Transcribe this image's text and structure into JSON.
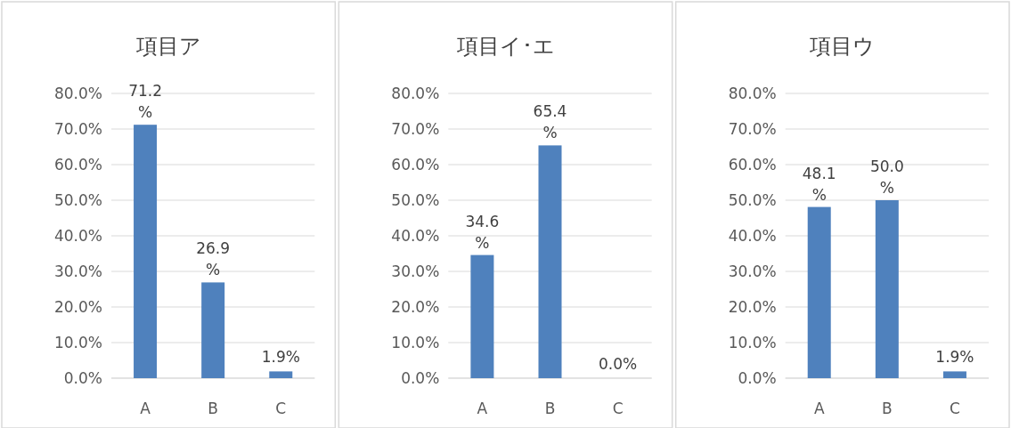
{
  "chart_data": [
    {
      "type": "bar",
      "title": "項目ア",
      "categories": [
        "A",
        "B",
        "C"
      ],
      "values": [
        71.2,
        26.9,
        1.9
      ],
      "value_labels": [
        "71.2%",
        "26.9%",
        "1.9%"
      ],
      "color": "#4f81bd",
      "ylim": [
        0,
        80
      ],
      "yticks": [
        {
          "value": 0,
          "label": "0.0%"
        },
        {
          "value": 10,
          "label": "10.0%"
        },
        {
          "value": 20,
          "label": "20.0%"
        },
        {
          "value": 30,
          "label": "30.0%"
        },
        {
          "value": 40,
          "label": "40.0%"
        },
        {
          "value": 50,
          "label": "50.0%"
        },
        {
          "value": 60,
          "label": "60.0%"
        },
        {
          "value": 70,
          "label": "70.0%"
        },
        {
          "value": 80,
          "label": "80.0%"
        }
      ],
      "grid": "y"
    },
    {
      "type": "bar",
      "title": "項目イ･エ",
      "categories": [
        "A",
        "B",
        "C"
      ],
      "values": [
        34.6,
        65.4,
        0.0
      ],
      "value_labels": [
        "34.6%",
        "65.4%",
        "0.0%"
      ],
      "color": "#4f81bd",
      "ylim": [
        0,
        80
      ],
      "yticks": [
        {
          "value": 0,
          "label": "0.0%"
        },
        {
          "value": 10,
          "label": "10.0%"
        },
        {
          "value": 20,
          "label": "20.0%"
        },
        {
          "value": 30,
          "label": "30.0%"
        },
        {
          "value": 40,
          "label": "40.0%"
        },
        {
          "value": 50,
          "label": "50.0%"
        },
        {
          "value": 60,
          "label": "60.0%"
        },
        {
          "value": 70,
          "label": "70.0%"
        },
        {
          "value": 80,
          "label": "80.0%"
        }
      ],
      "grid": "y"
    },
    {
      "type": "bar",
      "title": "項目ウ",
      "categories": [
        "A",
        "B",
        "C"
      ],
      "values": [
        48.1,
        50.0,
        1.9
      ],
      "value_labels": [
        "48.1%",
        "50.0%",
        "1.9%"
      ],
      "color": "#4f81bd",
      "ylim": [
        0,
        80
      ],
      "yticks": [
        {
          "value": 0,
          "label": "0.0%"
        },
        {
          "value": 10,
          "label": "10.0%"
        },
        {
          "value": 20,
          "label": "20.0%"
        },
        {
          "value": 30,
          "label": "30.0%"
        },
        {
          "value": 40,
          "label": "40.0%"
        },
        {
          "value": 50,
          "label": "50.0%"
        },
        {
          "value": 60,
          "label": "60.0%"
        },
        {
          "value": 70,
          "label": "70.0%"
        },
        {
          "value": 80,
          "label": "80.0%"
        }
      ],
      "grid": "y"
    }
  ]
}
